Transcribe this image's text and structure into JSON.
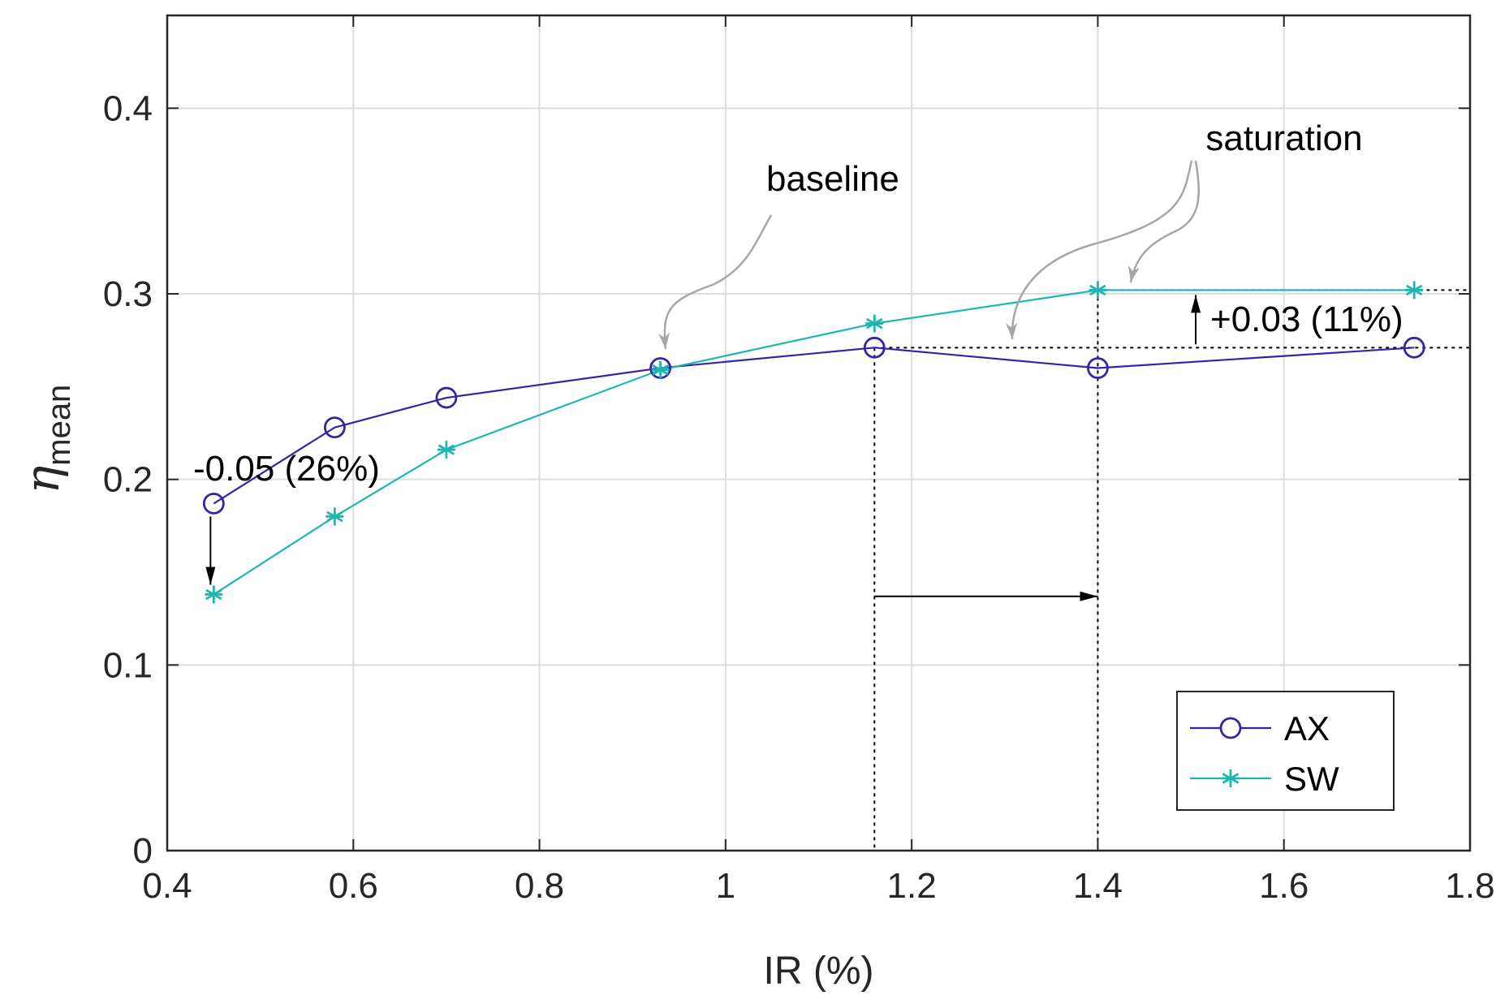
{
  "chart_data": {
    "type": "line",
    "xlabel": "IR (%)",
    "ylabel": {
      "symbol": "η",
      "subscript": "mean"
    },
    "xlim": [
      0.4,
      1.8
    ],
    "ylim": [
      0,
      0.45
    ],
    "xticks": [
      0.4,
      0.6,
      0.8,
      1.0,
      1.2,
      1.4,
      1.6,
      1.8
    ],
    "xtick_labels": [
      "0.4",
      "0.6",
      "0.8",
      "1",
      "1.2",
      "1.4",
      "1.6",
      "1.8"
    ],
    "yticks": [
      0,
      0.1,
      0.2,
      0.3,
      0.4
    ],
    "ytick_labels": [
      "0",
      "0.1",
      "0.2",
      "0.3",
      "0.4"
    ],
    "grid": true,
    "legend_position": "bottom-right",
    "series": [
      {
        "name": "AX",
        "marker": "circle",
        "color": "#3a22a6",
        "x": [
          0.45,
          0.58,
          0.7,
          0.93,
          1.16,
          1.4,
          1.74
        ],
        "y": [
          0.187,
          0.228,
          0.244,
          0.26,
          0.271,
          0.26,
          0.271
        ]
      },
      {
        "name": "SW",
        "marker": "asterisk",
        "color": "#1fb5b0",
        "x": [
          0.45,
          0.58,
          0.7,
          0.93,
          1.16,
          1.4,
          1.74
        ],
        "y": [
          0.138,
          0.18,
          0.216,
          0.259,
          0.284,
          0.302,
          0.302
        ]
      }
    ],
    "annotations": {
      "baseline": {
        "label": "baseline",
        "target": [
          0.93,
          0.26
        ]
      },
      "saturation": {
        "label": "saturation",
        "targets": [
          [
            1.31,
            0.271
          ],
          [
            1.43,
            0.302
          ]
        ]
      },
      "decrease": {
        "label": "-0.05 (26%)",
        "x": 0.45,
        "from": 0.187,
        "to": 0.138
      },
      "increase": {
        "label": "+0.03 (11%)",
        "x": 1.5,
        "from": 0.271,
        "to": 0.302
      },
      "shift": {
        "from_x": 1.16,
        "to_x": 1.4,
        "y": 0.137
      }
    },
    "colors": {
      "axis": "#262626",
      "grid": "#dddddd",
      "annotation_arrow": "#a6a6a6",
      "guide": "#000000"
    }
  }
}
